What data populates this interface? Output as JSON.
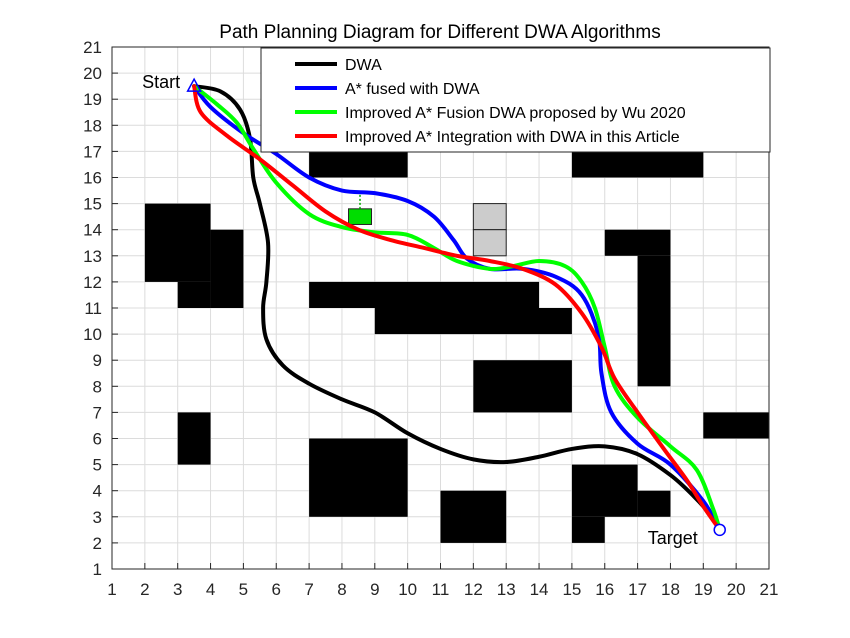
{
  "chart_data": {
    "type": "line",
    "title": "Path Planning Diagram for Different DWA Algorithms",
    "xlim": [
      1,
      21
    ],
    "ylim": [
      1,
      21
    ],
    "xticks": [
      "1",
      "2",
      "3",
      "4",
      "5",
      "6",
      "7",
      "8",
      "9",
      "10",
      "11",
      "12",
      "13",
      "14",
      "15",
      "16",
      "17",
      "18",
      "19",
      "20",
      "21"
    ],
    "yticks": [
      "1",
      "2",
      "3",
      "4",
      "5",
      "6",
      "7",
      "8",
      "9",
      "10",
      "11",
      "12",
      "13",
      "14",
      "15",
      "16",
      "17",
      "18",
      "19",
      "20",
      "21"
    ],
    "grid": true,
    "legend_position": "top-right",
    "start": {
      "label": "Start",
      "x": 3.5,
      "y": 19.5,
      "color": "#0000ff"
    },
    "target": {
      "label": "Target",
      "x": 19.5,
      "y": 2.5,
      "color": "#0000ff"
    },
    "obstacles": [
      {
        "x": [
          2,
          4
        ],
        "y": [
          12,
          15
        ],
        "color": "#000000"
      },
      {
        "x": [
          4,
          5
        ],
        "y": [
          11,
          14
        ],
        "color": "#000000"
      },
      {
        "x": [
          3,
          4
        ],
        "y": [
          11,
          12
        ],
        "color": "#000000"
      },
      {
        "x": [
          7,
          10
        ],
        "y": [
          16,
          17
        ],
        "color": "#000000"
      },
      {
        "x": [
          15,
          19
        ],
        "y": [
          16,
          17
        ],
        "color": "#000000"
      },
      {
        "x": [
          7,
          14
        ],
        "y": [
          11,
          12
        ],
        "color": "#000000"
      },
      {
        "x": [
          9,
          15
        ],
        "y": [
          10,
          11
        ],
        "color": "#000000"
      },
      {
        "x": [
          16,
          18
        ],
        "y": [
          13,
          14
        ],
        "color": "#000000"
      },
      {
        "x": [
          17,
          18
        ],
        "y": [
          8,
          13
        ],
        "color": "#000000"
      },
      {
        "x": [
          12,
          15
        ],
        "y": [
          7,
          9
        ],
        "color": "#000000"
      },
      {
        "x": [
          19,
          21
        ],
        "y": [
          6,
          7
        ],
        "color": "#000000"
      },
      {
        "x": [
          3,
          4
        ],
        "y": [
          5,
          7
        ],
        "color": "#000000"
      },
      {
        "x": [
          7,
          10
        ],
        "y": [
          3,
          6
        ],
        "color": "#000000"
      },
      {
        "x": [
          11,
          13
        ],
        "y": [
          2,
          4
        ],
        "color": "#000000"
      },
      {
        "x": [
          15,
          17
        ],
        "y": [
          3,
          5
        ],
        "color": "#000000"
      },
      {
        "x": [
          17,
          18
        ],
        "y": [
          3,
          4
        ],
        "color": "#000000"
      },
      {
        "x": [
          15,
          16
        ],
        "y": [
          2,
          3
        ],
        "color": "#000000"
      },
      {
        "x": [
          12,
          13
        ],
        "y": [
          14,
          15
        ],
        "color": "#cccccc"
      },
      {
        "x": [
          12,
          13
        ],
        "y": [
          13,
          14
        ],
        "color": "#cccccc"
      },
      {
        "x": [
          8.2,
          8.9
        ],
        "y": [
          14.2,
          14.8
        ],
        "color": "#00dd00"
      }
    ],
    "moving_obstacle_trace": {
      "x": [
        8.55,
        8.55
      ],
      "y": [
        14.8,
        15.5
      ],
      "color": "#00aa00"
    },
    "series": [
      {
        "name": "DWA",
        "color": "#000000",
        "x": [
          3.5,
          4.3,
          4.9,
          5.2,
          5.3,
          5.5,
          5.75,
          5.7,
          5.6,
          5.7,
          6.2,
          7.0,
          8.0,
          9.0,
          10.0,
          11.0,
          12.0,
          13.0,
          14.0,
          15.0,
          16.0,
          17.0,
          18.0,
          18.7,
          19.2,
          19.5
        ],
        "y": [
          19.5,
          19.3,
          18.6,
          17.5,
          16.0,
          15.0,
          13.5,
          12.0,
          11.0,
          9.8,
          8.8,
          8.1,
          7.5,
          7.0,
          6.2,
          5.6,
          5.2,
          5.1,
          5.3,
          5.6,
          5.7,
          5.4,
          4.6,
          3.8,
          3.1,
          2.5
        ]
      },
      {
        "name": "A* fused with DWA",
        "color": "#0000ff",
        "x": [
          3.5,
          4.0,
          5.0,
          6.0,
          7.0,
          8.0,
          9.0,
          10.0,
          10.8,
          11.4,
          11.8,
          12.5,
          13.5,
          14.5,
          15.3,
          15.8,
          15.9,
          16.2,
          17.0,
          18.0,
          19.0,
          19.5
        ],
        "y": [
          19.5,
          18.7,
          17.7,
          16.9,
          16.0,
          15.5,
          15.4,
          15.1,
          14.5,
          13.6,
          12.9,
          12.5,
          12.5,
          12.2,
          11.5,
          10.0,
          8.5,
          7.0,
          5.8,
          5.0,
          3.6,
          2.5
        ]
      },
      {
        "name": "Improved A* Fusion DWA proposed by Wu 2020",
        "color": "#00ff00",
        "x": [
          3.5,
          4.2,
          4.8,
          5.3,
          6.0,
          7.0,
          8.0,
          9.0,
          10.0,
          10.8,
          11.5,
          12.5,
          13.2,
          14.0,
          14.8,
          15.3,
          15.7,
          16.0,
          16.3,
          17.0,
          18.0,
          18.8,
          19.3,
          19.5
        ],
        "y": [
          19.5,
          18.8,
          18.1,
          17.1,
          15.8,
          14.6,
          14.1,
          13.9,
          13.8,
          13.3,
          12.8,
          12.5,
          12.6,
          12.8,
          12.6,
          12.0,
          11.0,
          9.5,
          8.0,
          6.8,
          5.7,
          4.8,
          3.3,
          2.5
        ]
      },
      {
        "name": "Improved A* Integration with DWA in this Article",
        "color": "#ff0000",
        "x": [
          3.5,
          3.7,
          4.5,
          5.5,
          6.5,
          7.5,
          8.5,
          9.5,
          10.5,
          11.5,
          12.5,
          13.5,
          14.5,
          15.3,
          15.9,
          16.3,
          17.0,
          17.8,
          18.5,
          19.0,
          19.5
        ],
        "y": [
          19.5,
          18.5,
          17.6,
          16.7,
          15.7,
          14.7,
          14.0,
          13.6,
          13.3,
          13.0,
          12.8,
          12.5,
          11.9,
          10.8,
          9.5,
          8.3,
          7.0,
          5.6,
          4.4,
          3.4,
          2.5
        ]
      }
    ]
  }
}
